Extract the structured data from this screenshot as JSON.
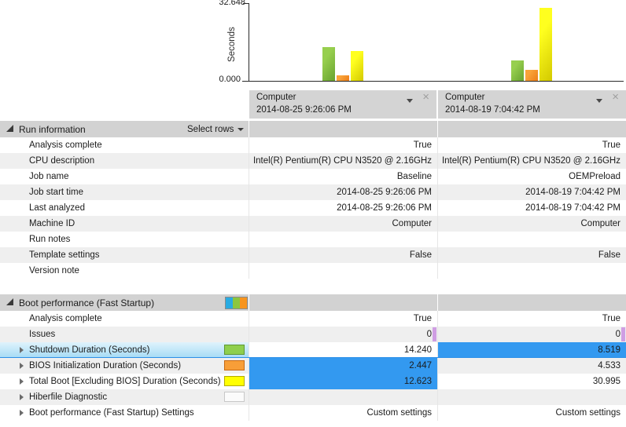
{
  "chart_data": {
    "type": "bar",
    "title": "",
    "ylabel": "Seconds",
    "ylim": [
      0,
      32.648
    ],
    "y_tick_labels": [
      "0.000",
      "32.648"
    ],
    "categories": [
      "Computer 2014-08-25 9:26:06 PM",
      "Computer 2014-08-19 7:04:42 PM"
    ],
    "series": [
      {
        "key": "shutdown",
        "name": "Shutdown Duration (Seconds)",
        "color": "#97cf4e",
        "color_dark": "#68a22f",
        "values": [
          14.24,
          8.519
        ]
      },
      {
        "key": "bios",
        "name": "BIOS Initialization Duration (Seconds)",
        "color": "#f9a33a",
        "color_dark": "#ec7d18",
        "values": [
          2.447,
          4.533
        ]
      },
      {
        "key": "totalboot",
        "name": "Total Boot [Excluding BIOS] Duration (Seconds)",
        "color": "#ffff1f",
        "color_dark": "#d3c900",
        "values": [
          12.623,
          30.995
        ]
      }
    ],
    "legend_position": "none",
    "grid": false
  },
  "icons": {
    "close": "×"
  },
  "colors": {
    "selection_blue": "#3399f0",
    "selected_row_blue": "#a8dcf5",
    "issues_chip_purple": "#cf9ee3",
    "header_gray": "#d4d4d4",
    "section_header_gray": "#d2d2d2",
    "alt_row_gray": "#efefef"
  },
  "columns": [
    {
      "name": "Computer",
      "datetime": "2014-08-25 9:26:06 PM"
    },
    {
      "name": "Computer",
      "datetime": "2014-08-19 7:04:42 PM"
    }
  ],
  "sections": [
    {
      "title": "Run information",
      "select_rows_label": "Select rows",
      "rows": [
        {
          "label": "Analysis complete",
          "values": [
            "True",
            "True"
          ]
        },
        {
          "label": "CPU description",
          "values": [
            "Intel(R) Pentium(R) CPU  N3520  @ 2.16GHz",
            "Intel(R) Pentium(R) CPU  N3520  @ 2.16GHz"
          ]
        },
        {
          "label": "Job name",
          "values": [
            "Baseline",
            "OEMPreload"
          ]
        },
        {
          "label": "Job start time",
          "values": [
            "2014-08-25 9:26:06 PM",
            "2014-08-19 7:04:42 PM"
          ]
        },
        {
          "label": "Last analyzed",
          "values": [
            "2014-08-25 9:26:06 PM",
            "2014-08-19 7:04:42 PM"
          ]
        },
        {
          "label": "Machine ID",
          "values": [
            "Computer",
            "Computer"
          ]
        },
        {
          "label": "Run notes",
          "values": [
            "",
            ""
          ]
        },
        {
          "label": "Template settings",
          "values": [
            "False",
            "False"
          ]
        },
        {
          "label": "Version note",
          "values": [
            "",
            ""
          ]
        }
      ]
    },
    {
      "title": "Boot performance (Fast Startup)",
      "legend_icon_colors": [
        "#29abe2",
        "#8cc63f",
        "#f7941e"
      ],
      "rows": [
        {
          "label": "Analysis complete",
          "values": [
            "True",
            "True"
          ]
        },
        {
          "label": "Issues",
          "values": [
            "0",
            "0"
          ],
          "chip_color": "#cf9ee3"
        },
        {
          "label": "Shutdown Duration (Seconds)",
          "values": [
            "14.240",
            "8.519"
          ],
          "expandable": true,
          "selected": true,
          "swatch": {
            "bg": "#8ecf4d",
            "border": "#5f9732"
          },
          "highlight": [
            false,
            true
          ]
        },
        {
          "label": "BIOS Initialization Duration (Seconds)",
          "values": [
            "2.447",
            "4.533"
          ],
          "expandable": true,
          "swatch": {
            "bg": "#f89e38",
            "border": "#c66a15"
          },
          "highlight": [
            true,
            false
          ]
        },
        {
          "label": "Total Boot [Excluding BIOS] Duration (Seconds)",
          "values": [
            "12.623",
            "30.995"
          ],
          "expandable": true,
          "swatch": {
            "bg": "#ffff00",
            "border": "#b3ab00"
          },
          "highlight": [
            true,
            false
          ]
        },
        {
          "label": "Hiberfile Diagnostic",
          "values": [
            "",
            ""
          ],
          "expandable": true,
          "swatch": {
            "bg": "#fbfbfb",
            "border": "#c8c8c8"
          }
        },
        {
          "label": "Boot performance (Fast Startup) Settings",
          "values": [
            "Custom settings",
            "Custom settings"
          ],
          "expandable": true
        }
      ]
    }
  ]
}
